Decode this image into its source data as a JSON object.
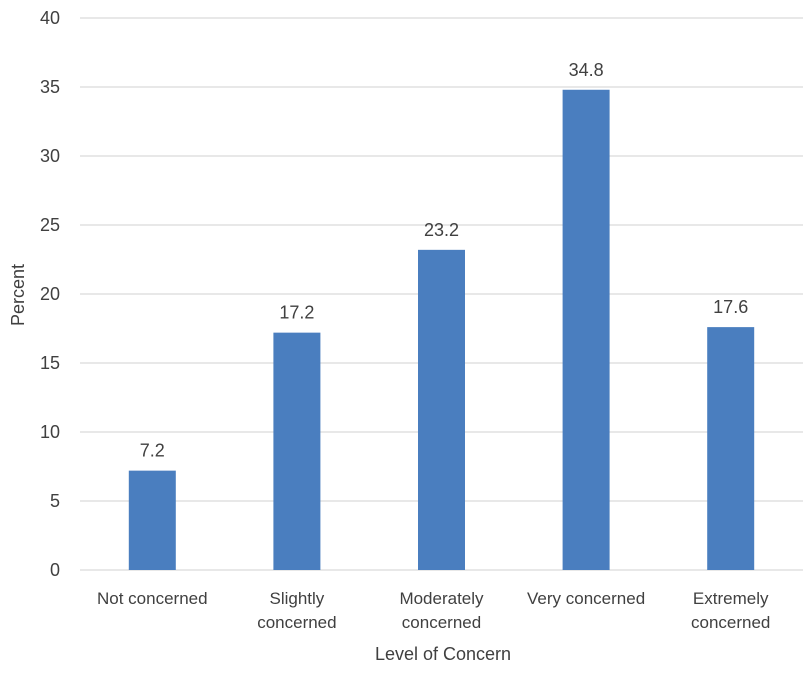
{
  "chart_data": {
    "type": "bar",
    "title": "",
    "xlabel": "Level of Concern",
    "ylabel": "Percent",
    "categories": [
      [
        "Not concerned"
      ],
      [
        "Slightly",
        "concerned"
      ],
      [
        "Moderately",
        "concerned"
      ],
      [
        "Very concerned"
      ],
      [
        "Extremely",
        "concerned"
      ]
    ],
    "values": [
      7.2,
      17.2,
      23.2,
      34.8,
      17.6
    ],
    "data_labels": [
      "7.2",
      "17.2",
      "23.2",
      "34.8",
      "17.6"
    ],
    "ylim": [
      0,
      40
    ],
    "yticks": [
      "0",
      "5",
      "10",
      "15",
      "20",
      "25",
      "30",
      "35",
      "40"
    ],
    "grid": true,
    "legend": "none",
    "bar_color": "#4a7ebf"
  }
}
